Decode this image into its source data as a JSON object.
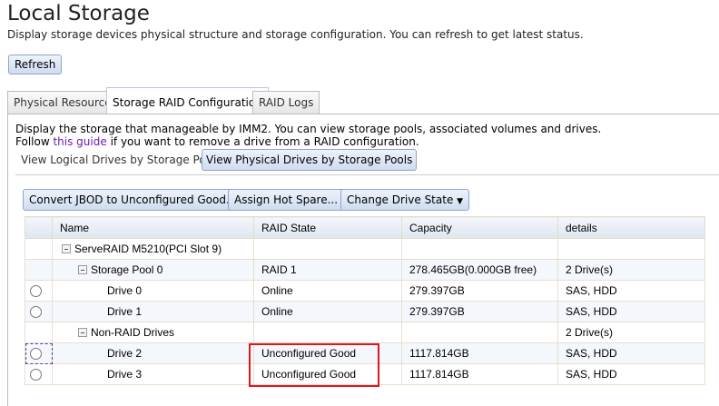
{
  "page": {
    "title": "Local Storage",
    "subtitle": "Display storage devices physical structure and storage configuration. You can refresh to get latest status.",
    "refresh_label": "Refresh"
  },
  "tabs": [
    {
      "label": "Physical Resource"
    },
    {
      "label": "Storage RAID Configuration",
      "active": true
    },
    {
      "label": "RAID Logs"
    }
  ],
  "panel": {
    "desc1": "Display the storage that manageable by IMM2. You can view storage pools, associated volumes and drives.",
    "follow_pre": "Follow ",
    "guide_link": "this guide",
    "follow_post": " if you want to remove a drive from a RAID configuration.",
    "view_tabs": [
      {
        "label": "View Logical Drives by Storage Pools"
      },
      {
        "label": "View Physical Drives by Storage Pools",
        "active": true
      }
    ]
  },
  "toolbar": {
    "convert": "Convert JBOD to Unconfigured Good...",
    "assign": "Assign Hot Spare...",
    "change": "Change Drive State",
    "change_icon": "caret-down-icon"
  },
  "table": {
    "headers": [
      "",
      "Name",
      "RAID State",
      "Capacity",
      "details"
    ],
    "rows": [
      {
        "name": "ServeRAID M5210(PCI Slot 9)",
        "state": "",
        "capacity": "",
        "details": ""
      },
      {
        "name": "Storage Pool 0",
        "state": "RAID 1",
        "capacity": "278.465GB(0.000GB free)",
        "details": "2 Drive(s)"
      },
      {
        "name": "Drive 0",
        "state": "Online",
        "capacity": "279.397GB",
        "details": "SAS, HDD"
      },
      {
        "name": "Drive 1",
        "state": "Online",
        "capacity": "279.397GB",
        "details": "SAS, HDD"
      },
      {
        "name": "Non-RAID Drives",
        "state": "",
        "capacity": "",
        "details": "2 Drive(s)"
      },
      {
        "name": "Drive 2",
        "state": "Unconfigured Good",
        "capacity": "1117.814GB",
        "details": "SAS, HDD"
      },
      {
        "name": "Drive 3",
        "state": "Unconfigured Good",
        "capacity": "1117.814GB",
        "details": "SAS, HDD"
      }
    ]
  },
  "colors": {
    "highlight": "#e0161e",
    "link": "#6a1bb5"
  }
}
